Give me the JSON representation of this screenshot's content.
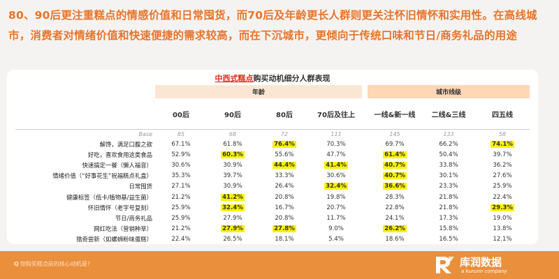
{
  "headline": "80、90后更注重糕点的情感价值和日常囤货，而70后及年龄更长人群则更关注怀旧情怀和实用性。在高线城市，消费者对情绪价值和快速便捷的需求较高，而在下沉城市，更倾向于传统口味和节日/商务礼品的用途",
  "table": {
    "title_accent": "中西式糕点",
    "title_rest": "购买动机细分人群表现",
    "groups": {
      "age": "年龄",
      "city": "城市线级"
    },
    "columns": [
      "00后",
      "90后",
      "80后",
      "70后及往上",
      "一线&新一线",
      "二线&三线",
      "四五线"
    ],
    "base_label": "Base",
    "base": [
      "85",
      "68",
      "72",
      "111",
      "145",
      "133",
      "58"
    ],
    "rows": [
      {
        "label": "解馋，满足口腹之欲",
        "values": [
          "67.1%",
          "61.8%",
          "76.4%",
          "70.3%",
          "69.7%",
          "66.2%",
          "74.1%"
        ]
      },
      {
        "label": "好吃，喜欢食用这类食品",
        "values": [
          "52.9%",
          "60.3%",
          "55.6%",
          "47.7%",
          "61.4%",
          "50.4%",
          "39.7%"
        ]
      },
      {
        "label": "快速搞定一餐（懒人福音）",
        "values": [
          "30.6%",
          "30.9%",
          "44.4%",
          "41.4%",
          "40.7%",
          "33.8%",
          "36.2%"
        ]
      },
      {
        "label": "情绪价值（“好事花生”祝福糕点礼盒）",
        "values": [
          "35.3%",
          "39.7%",
          "33.3%",
          "30.6%",
          "40.7%",
          "30.1%",
          "27.6%"
        ]
      },
      {
        "label": "日常囤货",
        "values": [
          "27.1%",
          "30.9%",
          "26.4%",
          "32.4%",
          "36.6%",
          "23.3%",
          "25.9%"
        ]
      },
      {
        "label": "健康标签（低卡/植物基/益生菌）",
        "values": [
          "21.2%",
          "41.2%",
          "20.8%",
          "19.8%",
          "28.3%",
          "21.8%",
          "22.4%"
        ]
      },
      {
        "label": "怀旧情怀（老字号复刻）",
        "values": [
          "25.9%",
          "32.4%",
          "16.7%",
          "20.7%",
          "22.8%",
          "21.8%",
          "29.3%"
        ]
      },
      {
        "label": "节日/商务礼品",
        "values": [
          "25.9%",
          "27.9%",
          "20.8%",
          "11.7%",
          "24.1%",
          "17.3%",
          "19.0%"
        ]
      },
      {
        "label": "网红吃法（营销种草）",
        "values": [
          "21.2%",
          "27.9%",
          "27.8%",
          "9.0%",
          "26.2%",
          "15.8%",
          "13.8%"
        ]
      },
      {
        "label": "猎奇尝新（如螺蛳粉味蛋糕）",
        "values": [
          "22.4%",
          "26.5%",
          "18.1%",
          "5.4%",
          "18.6%",
          "16.5%",
          "12.1%"
        ]
      }
    ],
    "highlight_color": "#fbf200"
  },
  "footer": {
    "question": "您购买糕点前的核心动机是?",
    "question_mark": "Q",
    "brand_name": "库润数据",
    "brand_sub": "a kurunn company"
  },
  "colors": {
    "accent": "#e8742a",
    "footer": "#ea8f3b",
    "title_red": "#e0281c"
  },
  "icons": {
    "brand_logo": "kr-logo-icon"
  }
}
